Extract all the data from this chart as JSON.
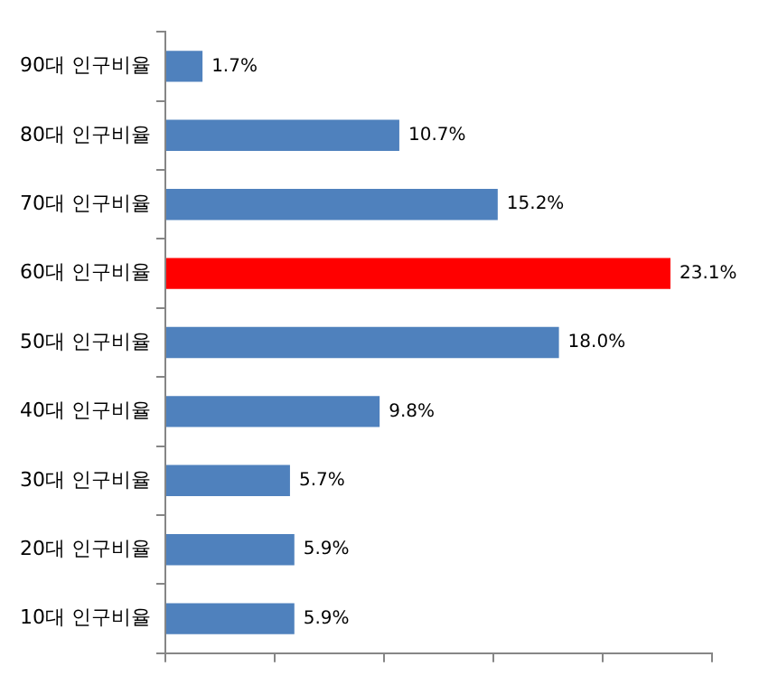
{
  "chart_data": {
    "type": "bar",
    "orientation": "horizontal",
    "categories": [
      "90대 인구비율",
      "80대 인구비율",
      "70대 인구비율",
      "60대 인구비율",
      "50대 인구비율",
      "40대 인구비율",
      "30대 인구비율",
      "20대 인구비율",
      "10대 인구비율"
    ],
    "values": [
      1.7,
      10.7,
      15.2,
      23.1,
      18.0,
      9.8,
      5.7,
      5.9,
      5.9
    ],
    "value_labels": [
      "1.7%",
      "10.7%",
      "15.2%",
      "23.1%",
      "18.0%",
      "9.8%",
      "5.7%",
      "5.9%",
      "5.9%"
    ],
    "colors": [
      "#4f81bd",
      "#4f81bd",
      "#4f81bd",
      "#ff0000",
      "#4f81bd",
      "#4f81bd",
      "#4f81bd",
      "#4f81bd",
      "#4f81bd"
    ],
    "xlim": [
      0,
      25
    ],
    "xticks": [
      {
        "value": 0,
        "label": null
      },
      {
        "value": 5,
        "label": null
      },
      {
        "value": 10,
        "label": null
      },
      {
        "value": 15,
        "label": null
      },
      {
        "value": 20,
        "label": null
      },
      {
        "value": 25,
        "label": null
      }
    ],
    "tick_labels": "y",
    "grid": false,
    "legend": false
  }
}
